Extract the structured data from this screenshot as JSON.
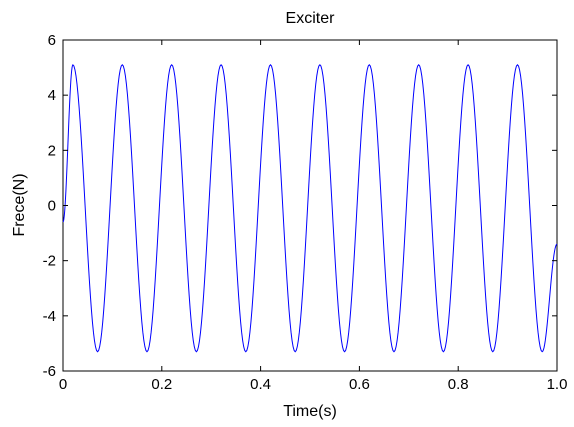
{
  "chart_data": {
    "type": "line",
    "title": "Exciter",
    "xlabel": "Time(s)",
    "ylabel": "Frece(N)",
    "xlim": [
      0,
      1.0
    ],
    "ylim": [
      -6,
      6
    ],
    "x_ticks": [
      "0",
      "0.2",
      "0.4",
      "0.6",
      "0.8",
      "1.0"
    ],
    "y_ticks": [
      "6",
      "4",
      "2",
      "0",
      "-2",
      "-4",
      "-6"
    ],
    "grid": false,
    "legend": "none",
    "series": [
      {
        "color": "#0000ff",
        "x": [
          0.0,
          0.02,
          0.07,
          0.12,
          0.17,
          0.22,
          0.27,
          0.32,
          0.37,
          0.42,
          0.47,
          0.52,
          0.57,
          0.62,
          0.67,
          0.72,
          0.77,
          0.82,
          0.87,
          0.92,
          0.97,
          1.0
        ],
        "y": [
          -0.6,
          5.1,
          -5.3,
          5.1,
          -5.3,
          5.1,
          -5.3,
          5.1,
          -5.3,
          5.1,
          -5.3,
          5.1,
          -5.3,
          5.1,
          -5.3,
          5.1,
          -5.3,
          5.1,
          -5.3,
          5.1,
          -5.3,
          -1.4
        ]
      }
    ]
  }
}
